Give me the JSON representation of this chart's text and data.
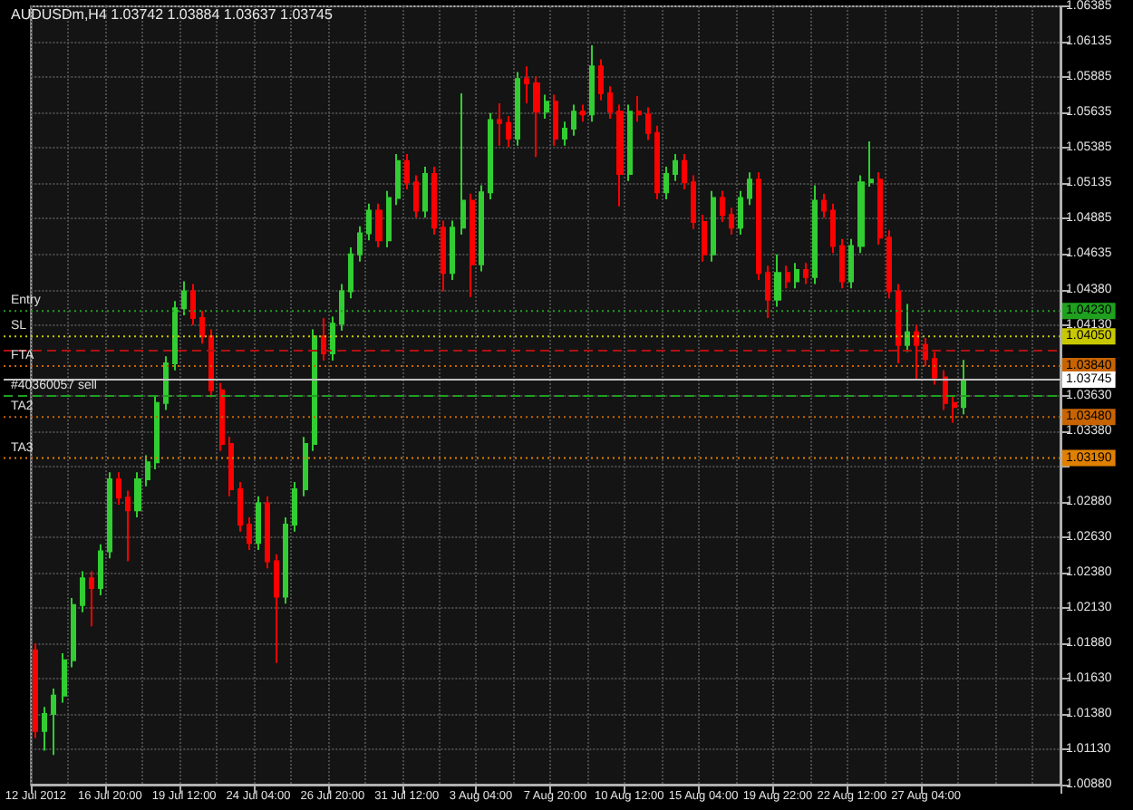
{
  "chart_data": {
    "type": "candlestick",
    "title": "AUDUSDm,H4 1.03742 1.03884 1.03637 1.03745",
    "categories": [
      "12 Jul 2012",
      null,
      null,
      null,
      null,
      null,
      null,
      null,
      "16 Jul 20:00",
      null,
      null,
      null,
      null,
      null,
      null,
      null,
      "19 Jul 12:00",
      null,
      null,
      null,
      null,
      null,
      null,
      null,
      "24 Jul 04:00",
      null,
      null,
      null,
      null,
      null,
      null,
      null,
      "26 Jul 20:00",
      null,
      null,
      null,
      null,
      null,
      null,
      null,
      "31 Jul 12:00",
      null,
      null,
      null,
      null,
      null,
      null,
      null,
      "3 Aug 04:00",
      null,
      null,
      null,
      null,
      null,
      null,
      null,
      "7 Aug 20:00",
      null,
      null,
      null,
      null,
      null,
      null,
      null,
      "10 Aug 12:00",
      null,
      null,
      null,
      null,
      null,
      null,
      null,
      "15 Aug 04:00",
      null,
      null,
      null,
      null,
      null,
      null,
      null,
      "19 Aug 22:00",
      null,
      null,
      null,
      null,
      null,
      null,
      null,
      "22 Aug 12:00",
      null,
      null,
      null,
      null,
      null,
      null,
      null,
      "27 Aug 04:00",
      null,
      null,
      null,
      null,
      null,
      null,
      null,
      null,
      null,
      null,
      null,
      null,
      null,
      null
    ],
    "ohlc": [
      [
        1.0183,
        1.0188,
        1.0121,
        1.0126
      ],
      [
        1.0126,
        1.0143,
        1.0112,
        1.0138
      ],
      [
        1.0138,
        1.0156,
        1.0109,
        1.0151
      ],
      [
        1.0151,
        1.0181,
        1.0146,
        1.0176
      ],
      [
        1.0176,
        1.022,
        1.0171,
        1.0215
      ],
      [
        1.0215,
        1.0239,
        1.021,
        1.0234
      ],
      [
        1.0234,
        1.0239,
        1.02,
        1.0227
      ],
      [
        1.0227,
        1.0258,
        1.0222,
        1.0253
      ],
      [
        1.0253,
        1.0309,
        1.0248,
        1.0304
      ],
      [
        1.0304,
        1.0309,
        1.0286,
        1.0291
      ],
      [
        1.0291,
        1.0296,
        1.0246,
        1.0282
      ],
      [
        1.0282,
        1.0309,
        1.0277,
        1.0304
      ],
      [
        1.0304,
        1.0321,
        1.0299,
        1.0316
      ],
      [
        1.0316,
        1.0363,
        1.0311,
        1.0358
      ],
      [
        1.0358,
        1.0391,
        1.0353,
        1.0386
      ],
      [
        1.0386,
        1.043,
        1.0381,
        1.0425
      ],
      [
        1.0425,
        1.0444,
        1.042,
        1.0437
      ],
      [
        1.0437,
        1.0442,
        1.0413,
        1.0418
      ],
      [
        1.0418,
        1.0423,
        1.04,
        1.0405
      ],
      [
        1.0405,
        1.041,
        1.0362,
        1.0367
      ],
      [
        1.0367,
        1.0372,
        1.0324,
        1.0329
      ],
      [
        1.0329,
        1.0334,
        1.0292,
        1.0297
      ],
      [
        1.0297,
        1.0302,
        1.0267,
        1.0272
      ],
      [
        1.0272,
        1.0277,
        1.0254,
        1.0259
      ],
      [
        1.0259,
        1.0292,
        1.0254,
        1.0287
      ],
      [
        1.0287,
        1.0292,
        1.0241,
        1.0246
      ],
      [
        1.0246,
        1.0251,
        1.0174,
        1.0221
      ],
      [
        1.0221,
        1.0277,
        1.0216,
        1.0272
      ],
      [
        1.0272,
        1.0302,
        1.0267,
        1.0297
      ],
      [
        1.0297,
        1.0334,
        1.0292,
        1.0329
      ],
      [
        1.0329,
        1.041,
        1.0324,
        1.0405
      ],
      [
        1.0405,
        1.0418,
        1.0388,
        1.0393
      ],
      [
        1.0393,
        1.0419,
        1.0388,
        1.0414
      ],
      [
        1.0414,
        1.0442,
        1.0409,
        1.0437
      ],
      [
        1.0437,
        1.0468,
        1.0432,
        1.0463
      ],
      [
        1.0463,
        1.0483,
        1.0458,
        1.0478
      ],
      [
        1.0478,
        1.0499,
        1.0473,
        1.0494
      ],
      [
        1.0494,
        1.0499,
        1.0468,
        1.0473
      ],
      [
        1.0473,
        1.0508,
        1.0468,
        1.0503
      ],
      [
        1.0503,
        1.0534,
        1.0498,
        1.0529
      ],
      [
        1.0529,
        1.0534,
        1.0509,
        1.0514
      ],
      [
        1.0514,
        1.0519,
        1.0489,
        1.0494
      ],
      [
        1.0494,
        1.0525,
        1.0489,
        1.052
      ],
      [
        1.052,
        1.0525,
        1.0477,
        1.0482
      ],
      [
        1.0482,
        1.0487,
        1.0437,
        1.045
      ],
      [
        1.045,
        1.0487,
        1.0445,
        1.0482
      ],
      [
        1.0482,
        1.0577,
        1.0477,
        1.0501
      ],
      [
        1.0501,
        1.0506,
        1.0433,
        1.0456
      ],
      [
        1.0456,
        1.0512,
        1.0451,
        1.0507
      ],
      [
        1.0507,
        1.0563,
        1.0502,
        1.0558
      ],
      [
        1.0558,
        1.057,
        1.054,
        1.0556
      ],
      [
        1.0556,
        1.0561,
        1.0539,
        1.0545
      ],
      [
        1.0545,
        1.0592,
        1.054,
        1.0587
      ],
      [
        1.0587,
        1.0596,
        1.057,
        1.0584
      ],
      [
        1.0584,
        1.0589,
        1.0532,
        1.0564
      ],
      [
        1.0564,
        1.0576,
        1.0559,
        1.0571
      ],
      [
        1.0571,
        1.0576,
        1.054,
        1.0545
      ],
      [
        1.0545,
        1.0557,
        1.054,
        1.0552
      ],
      [
        1.0552,
        1.0569,
        1.0547,
        1.0564
      ],
      [
        1.0564,
        1.0569,
        1.0557,
        1.0562
      ],
      [
        1.0562,
        1.0611,
        1.0557,
        1.0596
      ],
      [
        1.0596,
        1.0601,
        1.0572,
        1.0577
      ],
      [
        1.0577,
        1.0582,
        1.0559,
        1.0564
      ],
      [
        1.0564,
        1.0569,
        1.0497,
        1.052
      ],
      [
        1.052,
        1.0569,
        1.0515,
        1.0564
      ],
      [
        1.0564,
        1.0575,
        1.0557,
        1.0562
      ],
      [
        1.0562,
        1.0567,
        1.0544,
        1.0549
      ],
      [
        1.0549,
        1.0554,
        1.0502,
        1.0507
      ],
      [
        1.0507,
        1.0525,
        1.0502,
        1.052
      ],
      [
        1.052,
        1.0534,
        1.0515,
        1.0529
      ],
      [
        1.0529,
        1.0534,
        1.0509,
        1.0514
      ],
      [
        1.0514,
        1.0519,
        1.0481,
        1.0486
      ],
      [
        1.0486,
        1.0491,
        1.0458,
        1.0463
      ],
      [
        1.0463,
        1.0508,
        1.0458,
        1.0503
      ],
      [
        1.0503,
        1.0508,
        1.0486,
        1.0491
      ],
      [
        1.0491,
        1.0496,
        1.0477,
        1.0482
      ],
      [
        1.0482,
        1.0508,
        1.0477,
        1.0503
      ],
      [
        1.0503,
        1.0521,
        1.0498,
        1.0516
      ],
      [
        1.0516,
        1.0521,
        1.0445,
        1.045
      ],
      [
        1.045,
        1.0455,
        1.0418,
        1.0431
      ],
      [
        1.0431,
        1.0463,
        1.0426,
        1.045
      ],
      [
        1.045,
        1.0455,
        1.0439,
        1.0444
      ],
      [
        1.0444,
        1.0457,
        1.0439,
        1.0452
      ],
      [
        1.0452,
        1.0457,
        1.0442,
        1.0447
      ],
      [
        1.0447,
        1.0512,
        1.0442,
        1.0501
      ],
      [
        1.0501,
        1.0506,
        1.0489,
        1.0494
      ],
      [
        1.0494,
        1.0499,
        1.0464,
        1.0469
      ],
      [
        1.0469,
        1.0474,
        1.0439,
        1.0444
      ],
      [
        1.0444,
        1.0474,
        1.0439,
        1.0469
      ],
      [
        1.0469,
        1.0519,
        1.0464,
        1.0514
      ],
      [
        1.0514,
        1.0543,
        1.0511,
        1.0516
      ],
      [
        1.0516,
        1.0521,
        1.047,
        1.0475
      ],
      [
        1.0475,
        1.048,
        1.0432,
        1.0437
      ],
      [
        1.0437,
        1.0442,
        1.0386,
        1.0399
      ],
      [
        1.0399,
        1.0428,
        1.0394,
        1.0408
      ],
      [
        1.0408,
        1.0413,
        1.0374,
        1.0399
      ],
      [
        1.0399,
        1.0404,
        1.0384,
        1.0389
      ],
      [
        1.0389,
        1.0394,
        1.0371,
        1.0376
      ],
      [
        1.0376,
        1.0381,
        1.0353,
        1.0358
      ],
      [
        1.0358,
        1.0363,
        1.0344,
        1.0355
      ],
      [
        1.0355,
        1.03884,
        1.035,
        1.03745
      ],
      null,
      null,
      null,
      null,
      null,
      null,
      null,
      null,
      null,
      null
    ],
    "ylim": [
      1.0088,
      1.06385
    ],
    "yticks": [
      1.06385,
      1.06135,
      1.05885,
      1.05635,
      1.05385,
      1.05135,
      1.04885,
      1.04635,
      {
        "value": 1.0438,
        "label": "1.04380"
      },
      {
        "value": 1.0413,
        "label": "1.04130"
      },
      {
        "value": 1.0363,
        "label": "1.03630"
      },
      {
        "value": 1.0338,
        "label": "1.03380"
      },
      {
        "value": 1.0313,
        "label": null
      },
      {
        "value": 1.0288,
        "label": "1.02880"
      },
      {
        "value": 1.0263,
        "label": "1.02630"
      },
      {
        "value": 1.0238,
        "label": "1.02380"
      },
      {
        "value": 1.0213,
        "label": "1.02130"
      },
      {
        "value": 1.0188,
        "label": "1.01880"
      },
      {
        "value": 1.0163,
        "label": "1.01630"
      },
      {
        "value": 1.0138,
        "label": "1.01380"
      },
      {
        "value": 1.0113,
        "label": "1.01130"
      },
      {
        "value": 1.0088,
        "label": "1.00880"
      }
    ],
    "grid": true,
    "ref_lines": [
      {
        "axis": "y",
        "value": 1.0423,
        "label": "Entry",
        "color": "#1fa01f",
        "line_style": "dotted"
      },
      {
        "axis": "y",
        "value": 1.0405,
        "label": "SL",
        "color": "#c8c800",
        "line_style": "dotted"
      },
      {
        "axis": "y",
        "value": 1.0395,
        "label": null,
        "color": "#b01010",
        "line_style": "dashed"
      },
      {
        "axis": "y",
        "value": 1.0384,
        "label": "FTA",
        "color": "#c86400",
        "line_style": "dotted"
      },
      {
        "axis": "y",
        "value": 1.03745,
        "label": null,
        "color": "#c0c0c0",
        "line_style": "solid"
      },
      {
        "axis": "y",
        "value": 1.0363,
        "label": "#40360057 sell",
        "color": "#1fa01f",
        "line_style": "dashed"
      },
      {
        "axis": "y",
        "value": 1.0348,
        "label": "TA2",
        "color": "#c86400",
        "line_style": "dotted"
      },
      {
        "axis": "y",
        "value": 1.0319,
        "label": "TA3",
        "color": "#e08000",
        "line_style": "dotted"
      }
    ],
    "annotations": [
      {
        "text": "1.04230",
        "y": 1.0423
      },
      {
        "text": "1.04050",
        "y": 1.0405
      },
      {
        "text": "1.03840",
        "y": 1.0384
      },
      {
        "text": "1.03745",
        "y": 1.03745
      },
      {
        "text": "1.03480",
        "y": 1.0348
      },
      {
        "text": "1.03190",
        "y": 1.0319
      }
    ]
  }
}
